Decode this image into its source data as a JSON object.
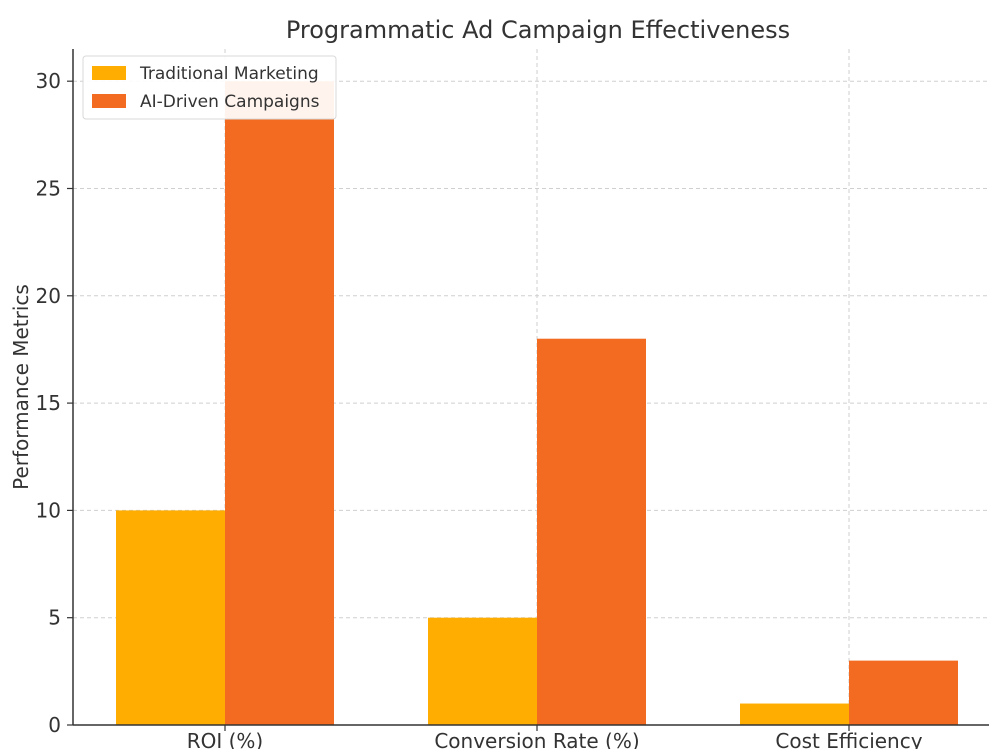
{
  "chart_data": {
    "type": "bar",
    "title": "Programmatic Ad Campaign Effectiveness",
    "xlabel": "",
    "ylabel": "Performance Metrics",
    "categories": [
      "ROI (%)",
      "Conversion Rate (%)",
      "Cost Efficiency"
    ],
    "series": [
      {
        "name": "Traditional Marketing",
        "values": [
          10,
          5,
          1
        ],
        "color": "#ffad00"
      },
      {
        "name": "AI-Driven Campaigns",
        "values": [
          30,
          18,
          3
        ],
        "color": "#f26b21"
      }
    ],
    "ylim": [
      0,
      31.5
    ],
    "yticks": [
      0,
      5,
      10,
      15,
      20,
      25,
      30
    ],
    "grid": true,
    "legend_position": "top-left"
  }
}
